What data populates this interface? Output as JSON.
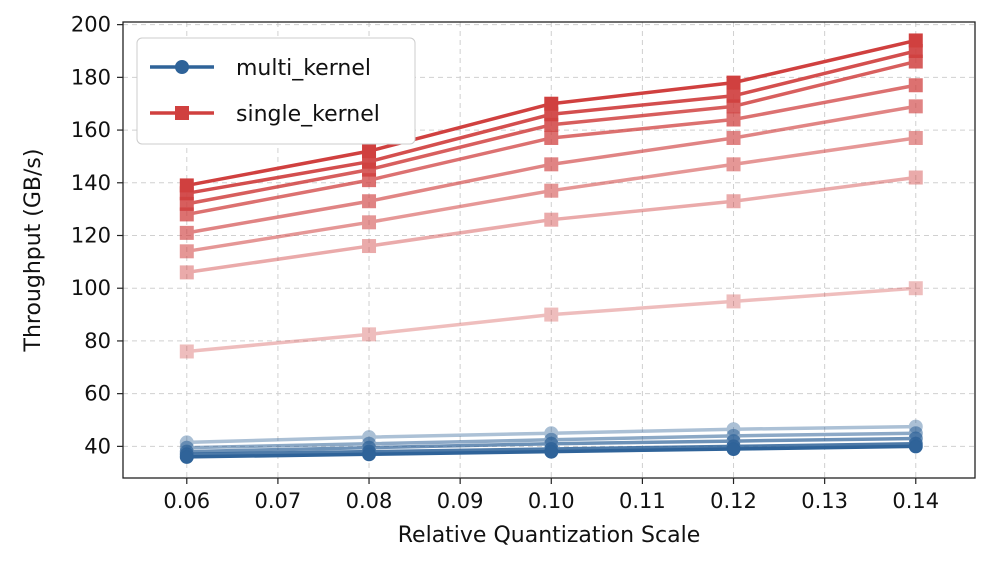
{
  "chart_data": {
    "type": "line",
    "title": "",
    "xlabel": "Relative Quantization Scale",
    "ylabel": "Throughput (GB/s)",
    "x": [
      0.06,
      0.08,
      0.1,
      0.12,
      0.14
    ],
    "x_ticks": [
      "0.06",
      "0.07",
      "0.08",
      "0.09",
      "0.10",
      "0.11",
      "0.12",
      "0.13",
      "0.14"
    ],
    "y_ticks": [
      "40",
      "60",
      "80",
      "100",
      "120",
      "140",
      "160",
      "180",
      "200"
    ],
    "xlim": [
      0.053,
      0.1465
    ],
    "ylim": [
      28,
      201
    ],
    "grid": true,
    "legend_position": "top-left",
    "legend": [
      {
        "label": "multi_kernel",
        "marker": "circle",
        "color": "#2f6399"
      },
      {
        "label": "single_kernel",
        "marker": "square",
        "color": "#d0403f"
      }
    ],
    "groups": [
      {
        "name": "multi_kernel",
        "color": "#2f6399",
        "marker": "circle",
        "series": [
          {
            "values": [
              36,
              37,
              38,
              39,
              40
            ],
            "opacity": 1.0
          },
          {
            "values": [
              37,
              38,
              39,
              40,
              41
            ],
            "opacity": 0.85
          },
          {
            "values": [
              38,
              39.5,
              41,
              42,
              43
            ],
            "opacity": 0.7
          },
          {
            "values": [
              39.5,
              41,
              42.5,
              44,
              45
            ],
            "opacity": 0.55
          },
          {
            "values": [
              41.5,
              43.5,
              45,
              46.5,
              47.5
            ],
            "opacity": 0.4
          }
        ]
      },
      {
        "name": "single_kernel",
        "color": "#d0403f",
        "marker": "square",
        "series": [
          {
            "values": [
              139,
              152,
              170,
              178,
              194
            ],
            "opacity": 1.0
          },
          {
            "values": [
              136,
              148,
              166,
              173,
              190
            ],
            "opacity": 0.92
          },
          {
            "values": [
              132,
              145,
              162,
              169,
              186
            ],
            "opacity": 0.84
          },
          {
            "values": [
              128,
              141,
              157,
              164,
              177
            ],
            "opacity": 0.74
          },
          {
            "values": [
              121,
              133,
              147,
              157,
              169
            ],
            "opacity": 0.64
          },
          {
            "values": [
              114,
              125,
              137,
              147,
              157
            ],
            "opacity": 0.54
          },
          {
            "values": [
              106,
              116,
              126,
              133,
              142
            ],
            "opacity": 0.44
          },
          {
            "values": [
              76,
              82.5,
              90,
              95,
              100
            ],
            "opacity": 0.34
          }
        ]
      }
    ]
  }
}
